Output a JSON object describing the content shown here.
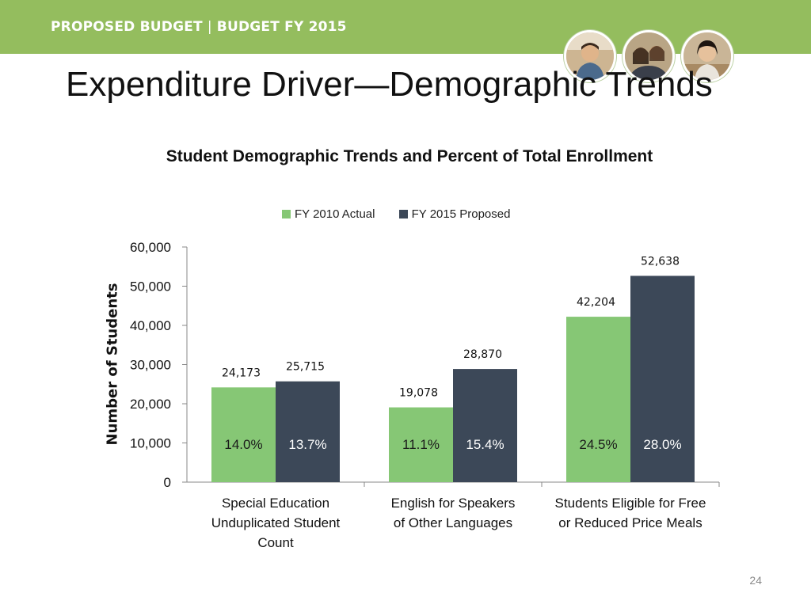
{
  "header": {
    "banner_left": "PROPOSED BUDGET",
    "banner_separator": "|",
    "banner_right": "BUDGET FY 2015",
    "photos": [
      "student-photo-1",
      "student-photo-2",
      "student-photo-3"
    ]
  },
  "slide": {
    "title": "Expenditure Driver—Demographic Trends",
    "page_number": "24"
  },
  "colors": {
    "banner": "#94bd5e",
    "fy2010": "#86c775",
    "fy2015": "#3c4858"
  },
  "chart_data": {
    "type": "bar",
    "title": "Student Demographic Trends and Percent of Total Enrollment",
    "ylabel": "Number of Students",
    "xlabel": "",
    "ylim": [
      0,
      60000
    ],
    "yticks": [
      0,
      10000,
      20000,
      30000,
      40000,
      50000,
      60000
    ],
    "ytick_labels": [
      "0",
      "10,000",
      "20,000",
      "30,000",
      "40,000",
      "50,000",
      "60,000"
    ],
    "legend_position": "top",
    "grid": false,
    "categories": [
      [
        "Special Education",
        "Unduplicated Student",
        "Count"
      ],
      [
        "English for Speakers",
        "of Other Languages"
      ],
      [
        "Students Eligible for Free",
        "or Reduced Price Meals"
      ]
    ],
    "series": [
      {
        "name": "FY 2010 Actual",
        "color": "#86c775",
        "values": [
          24173,
          19078,
          42204
        ],
        "value_labels": [
          "24,173",
          "19,078",
          "42,204"
        ],
        "percent_labels": [
          "14.0%",
          "11.1%",
          "24.5%"
        ]
      },
      {
        "name": "FY 2015 Proposed",
        "color": "#3c4858",
        "values": [
          25715,
          28870,
          52638
        ],
        "value_labels": [
          "25,715",
          "28,870",
          "52,638"
        ],
        "percent_labels": [
          "13.7%",
          "15.4%",
          "28.0%"
        ]
      }
    ]
  }
}
